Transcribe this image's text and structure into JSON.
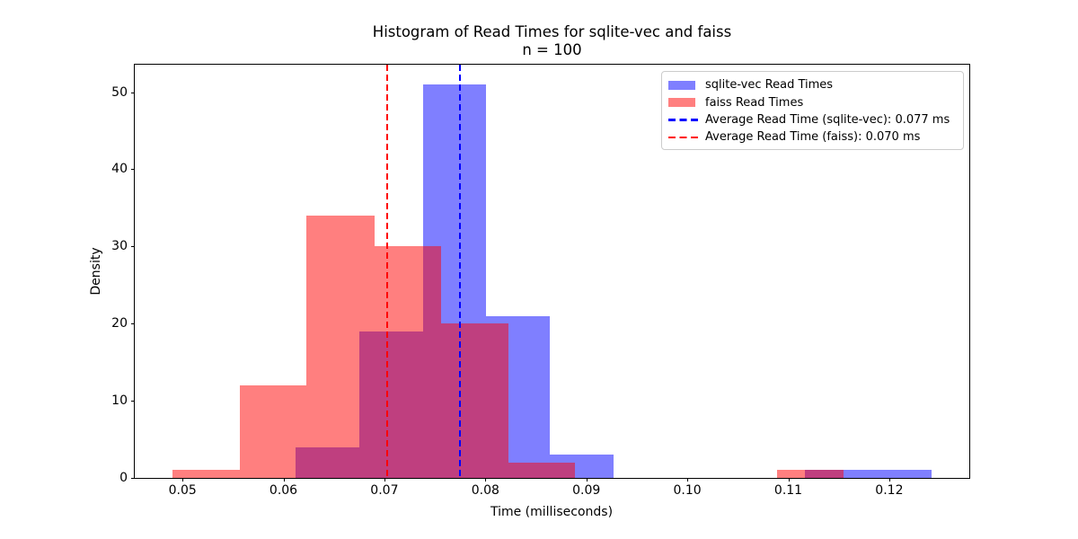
{
  "chart_data": {
    "type": "histogram",
    "title": "Histogram of Read Times for sqlite-vec and faiss",
    "subtitle": "n = 100",
    "xlabel": "Time (milliseconds)",
    "ylabel": "Density",
    "xlim": [
      0.04527,
      0.12793
    ],
    "ylim": [
      0,
      53.55
    ],
    "grid": false,
    "legend_position": "upper right",
    "x_ticks": [
      {
        "v": 0.05,
        "label": "0.05"
      },
      {
        "v": 0.06,
        "label": "0.06"
      },
      {
        "v": 0.07,
        "label": "0.07"
      },
      {
        "v": 0.08,
        "label": "0.08"
      },
      {
        "v": 0.09,
        "label": "0.09"
      },
      {
        "v": 0.1,
        "label": "0.10"
      },
      {
        "v": 0.11,
        "label": "0.11"
      },
      {
        "v": 0.12,
        "label": "0.12"
      }
    ],
    "y_ticks": [
      {
        "v": 0,
        "label": "0"
      },
      {
        "v": 10,
        "label": "10"
      },
      {
        "v": 20,
        "label": "20"
      },
      {
        "v": 30,
        "label": "30"
      },
      {
        "v": 40,
        "label": "40"
      },
      {
        "v": 50,
        "label": "50"
      }
    ],
    "series": [
      {
        "id": "sqlite-vec",
        "name": "sqlite-vec Read Times",
        "fill": "rgba(0,0,255,0.5)",
        "bin_edges": [
          0.0612,
          0.0675,
          0.0738,
          0.0801,
          0.0864,
          0.0927,
          0.099,
          0.1053,
          0.1116,
          0.1179,
          0.1242
        ],
        "counts": [
          4,
          19,
          51,
          21,
          3,
          0,
          0,
          0,
          1,
          1
        ]
      },
      {
        "id": "faiss",
        "name": "faiss Read Times",
        "fill": "rgba(255,0,0,0.5)",
        "bin_edges": [
          0.049,
          0.0557,
          0.0623,
          0.069,
          0.0756,
          0.0823,
          0.0889,
          0.0956,
          0.1022,
          0.1089,
          0.1155
        ],
        "counts": [
          1,
          12,
          34,
          30,
          20,
          2,
          0,
          0,
          0,
          1
        ]
      }
    ],
    "mean_lines": [
      {
        "id": "sqlite-vec",
        "value_ms": 0.0775,
        "value_label": "0.077 ms",
        "color": "#0000ff",
        "label": "Average Read Time (sqlite-vec): 0.077 ms"
      },
      {
        "id": "faiss",
        "value_ms": 0.0703,
        "value_label": "0.070 ms",
        "color": "#ff0000",
        "label": "Average Read Time (faiss): 0.070 ms"
      }
    ],
    "legend": [
      {
        "handle": "patch",
        "color": "rgba(0,0,255,0.5)",
        "label": "sqlite-vec Read Times"
      },
      {
        "handle": "patch",
        "color": "rgba(255,0,0,0.5)",
        "label": "faiss Read Times"
      },
      {
        "handle": "dashed-line",
        "color": "#0000ff",
        "label": "Average Read Time (sqlite-vec): 0.077 ms"
      },
      {
        "handle": "dashed-line",
        "color": "#ff0000",
        "label": "Average Read Time (faiss): 0.070 ms"
      }
    ],
    "colors": {
      "sqlite_vec_bar": "#7f7fff",
      "faiss_bar": "#ff7f7f",
      "overlap": "#bf4080",
      "sqlite_vec_mean_line": "#0000ff",
      "faiss_mean_line": "#ff0000",
      "axis": "#000000",
      "legend_border": "#cccccc"
    }
  }
}
